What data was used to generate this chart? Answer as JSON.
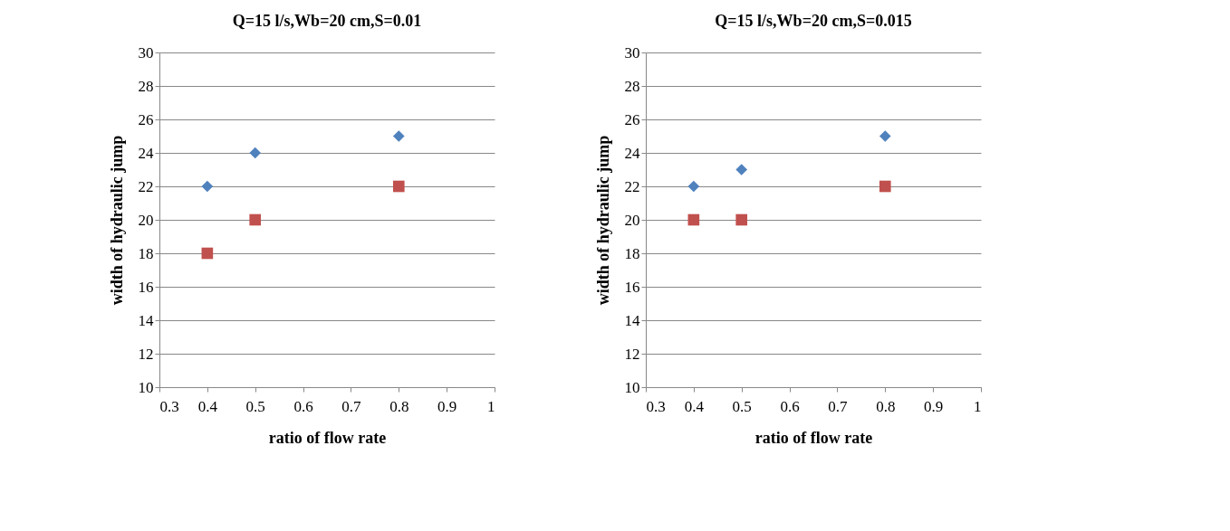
{
  "chart_data": [
    {
      "type": "scatter",
      "title": "Q=15 l/s,Wb=20 cm,S=0.01",
      "xlabel": "ratio of flow rate",
      "ylabel": "width of hydraulic jump",
      "xlim": [
        0.3,
        1
      ],
      "xticks": [
        0.3,
        0.4,
        0.5,
        0.6,
        0.7,
        0.8,
        0.9,
        1
      ],
      "ylim": [
        10,
        30
      ],
      "yticks": [
        10,
        12,
        14,
        16,
        18,
        20,
        22,
        24,
        26,
        28,
        30
      ],
      "grid": "y",
      "series": [
        {
          "color": "#4f81bd",
          "marker": "diamond",
          "x": [
            0.4,
            0.5,
            0.8
          ],
          "values": [
            22,
            24,
            25
          ]
        },
        {
          "color": "#c0504d",
          "marker": "square",
          "x": [
            0.4,
            0.5,
            0.8
          ],
          "values": [
            18,
            20,
            22
          ]
        }
      ]
    },
    {
      "type": "scatter",
      "title": "Q=15 l/s,Wb=20 cm,S=0.015",
      "xlabel": "ratio of flow rate",
      "ylabel": "width of hydraulic jump",
      "xlim": [
        0.3,
        1
      ],
      "xticks": [
        0.3,
        0.4,
        0.5,
        0.6,
        0.7,
        0.8,
        0.9,
        1
      ],
      "ylim": [
        10,
        30
      ],
      "yticks": [
        10,
        12,
        14,
        16,
        18,
        20,
        22,
        24,
        26,
        28,
        30
      ],
      "grid": "y",
      "series": [
        {
          "color": "#4f81bd",
          "marker": "diamond",
          "x": [
            0.4,
            0.5,
            0.8
          ],
          "values": [
            22,
            23,
            25
          ]
        },
        {
          "color": "#c0504d",
          "marker": "square",
          "x": [
            0.4,
            0.5,
            0.8
          ],
          "values": [
            20,
            20,
            22
          ]
        }
      ]
    }
  ]
}
